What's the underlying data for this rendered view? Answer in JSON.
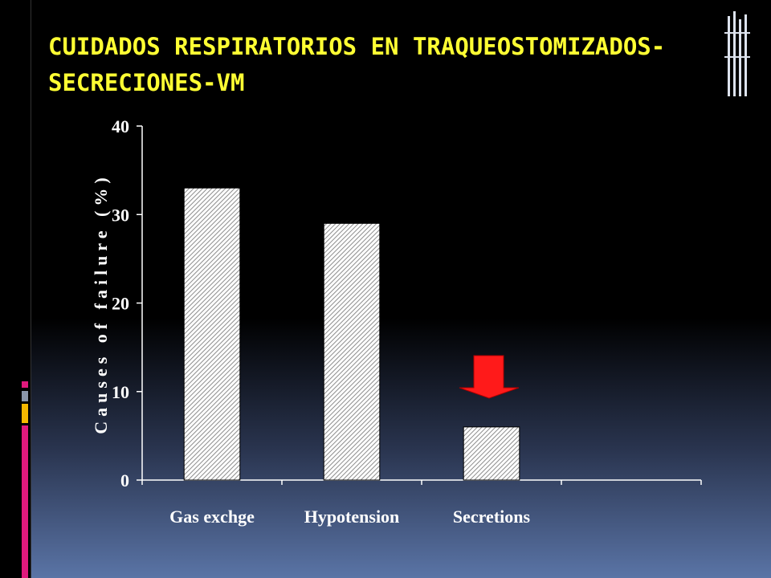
{
  "chart_data": {
    "type": "bar",
    "title": [
      "CUIDADOS RESPIRATORIOS EN TRAQUEOSTOMIZADOS-",
      "SECRECIONES-VM"
    ],
    "y_label": "Causes of failure (%)",
    "categories": [
      "Gas exchge",
      "Hypotension",
      "Secretions",
      null
    ],
    "values": [
      33,
      29,
      6,
      null
    ],
    "color": "#8c8c8c",
    "ylim": [
      0,
      40
    ],
    "yticks": [
      0,
      10,
      20,
      30,
      40
    ],
    "grid": false
  }
}
